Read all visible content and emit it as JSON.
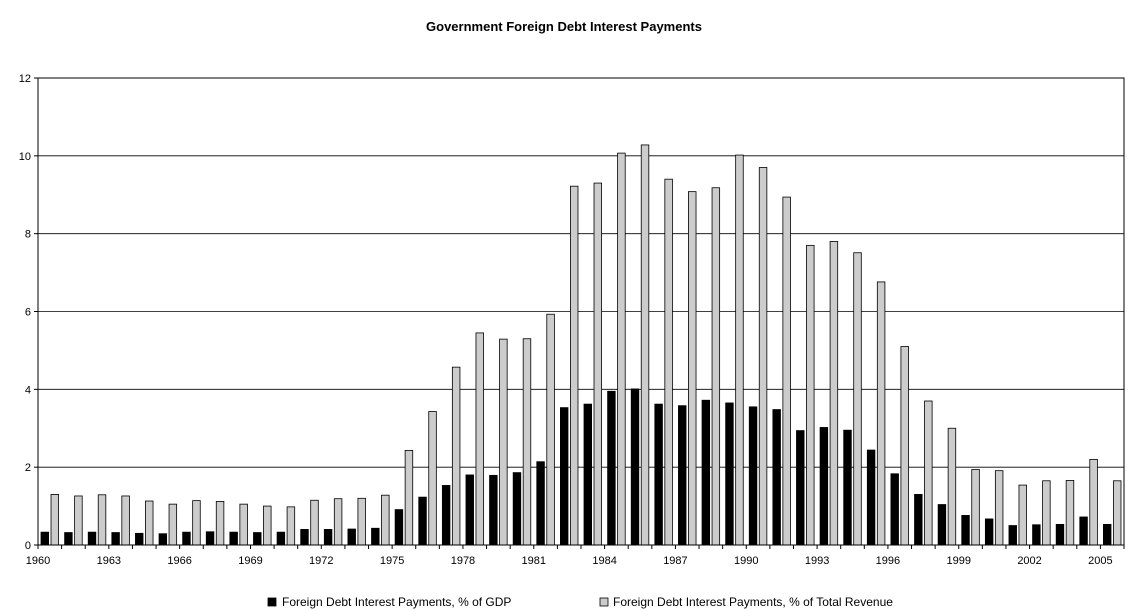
{
  "chart_data": {
    "type": "bar",
    "title": "Government Foreign Debt Interest Payments",
    "xlabel": "",
    "ylabel": "",
    "ylim": [
      0,
      12
    ],
    "yticks": [
      "0",
      "2",
      "4",
      "6",
      "8",
      "10",
      "12"
    ],
    "xtick_labels": [
      "1960",
      "1963",
      "1966",
      "1969",
      "1972",
      "1975",
      "1978",
      "1981",
      "1984",
      "1987",
      "1990",
      "1993",
      "1996",
      "1999",
      "2002",
      "2005"
    ],
    "grid": true,
    "legend": "bottom",
    "categories": [
      "1960",
      "1961",
      "1962",
      "1963",
      "1964",
      "1965",
      "1966",
      "1967",
      "1968",
      "1969",
      "1970",
      "1971",
      "1972",
      "1973",
      "1974",
      "1975",
      "1976",
      "1977",
      "1978",
      "1979",
      "1980",
      "1981",
      "1982",
      "1983",
      "1984",
      "1985",
      "1986",
      "1987",
      "1988",
      "1989",
      "1990",
      "1991",
      "1992",
      "1993",
      "1994",
      "1995",
      "1996",
      "1997",
      "1998",
      "1999",
      "2000",
      "2001",
      "2002",
      "2003",
      "2004",
      "2005"
    ],
    "series": [
      {
        "name": "Foreign Debt Interest Payments, % of GDP",
        "color": "#000000",
        "values": [
          0.33,
          0.32,
          0.33,
          0.32,
          0.3,
          0.29,
          0.33,
          0.34,
          0.33,
          0.32,
          0.33,
          0.4,
          0.4,
          0.41,
          0.43,
          0.91,
          1.23,
          1.53,
          1.8,
          1.79,
          1.86,
          2.14,
          3.53,
          3.62,
          3.95,
          4.01,
          3.62,
          3.58,
          3.72,
          3.65,
          3.55,
          3.48,
          2.94,
          3.02,
          2.95,
          2.44,
          1.83,
          1.3,
          1.04,
          0.76,
          0.67,
          0.5,
          0.52,
          0.53,
          0.72,
          0.53
        ]
      },
      {
        "name": "Foreign Debt Interest Payments, % of Total Revenue",
        "color": "#cccccc",
        "values": [
          1.3,
          1.26,
          1.29,
          1.26,
          1.13,
          1.05,
          1.14,
          1.12,
          1.05,
          1.0,
          0.98,
          1.15,
          1.19,
          1.2,
          1.28,
          2.43,
          3.43,
          4.57,
          5.45,
          5.29,
          5.3,
          5.93,
          9.22,
          9.3,
          10.07,
          10.28,
          9.4,
          9.08,
          9.18,
          10.02,
          9.7,
          8.94,
          7.7,
          7.8,
          7.51,
          6.76,
          5.1,
          3.7,
          3.0,
          1.94,
          1.91,
          1.54,
          1.65,
          1.66,
          2.2,
          1.65
        ]
      }
    ]
  }
}
